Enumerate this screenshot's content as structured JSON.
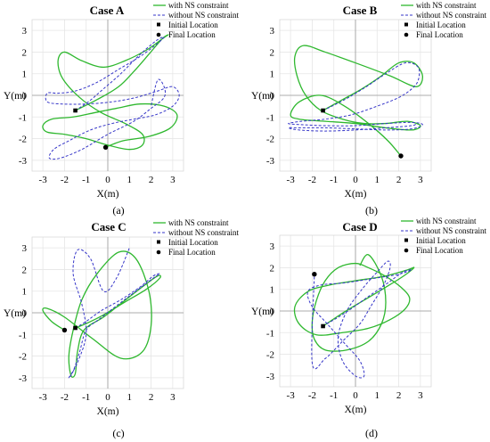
{
  "legend_labels": {
    "with": "with NS constraint",
    "without": "without NS constraint",
    "initial": "Initial Location",
    "final": "Final Location"
  },
  "colors": {
    "with": "#2fb82f",
    "without": "#3535c8",
    "marker": "#000000"
  },
  "chart_data": [
    {
      "type": "line",
      "title": "Case A",
      "caption": "(a)",
      "xlabel": "X(m)",
      "ylabel": "Y(m)",
      "xlim": [
        -3.5,
        3.5
      ],
      "ylim": [
        -3.5,
        3.5
      ],
      "xticks": [
        -3,
        -2,
        -1,
        0,
        1,
        2,
        3
      ],
      "yticks": [
        -3,
        -2,
        -1,
        0,
        1,
        2,
        3
      ],
      "legend": "top-right",
      "initial_location": [
        -1.5,
        -0.7
      ],
      "final_location": [
        -0.1,
        -2.4
      ],
      "series": [
        {
          "name": "with NS constraint",
          "style": "solid",
          "x": [
            -1.5,
            -0.5,
            0.5,
            1.2,
            1.9,
            2.5,
            2.8,
            2.5,
            1.8,
            0.8,
            -0.2,
            -1.2,
            -2.0,
            -2.3,
            -2.1,
            -1.3,
            -0.3,
            0.8,
            1.6,
            1.6,
            1.0,
            0.0,
            -1.0,
            -2.0,
            -2.8,
            -3.0,
            -2.6,
            -1.6,
            -0.6,
            0.4,
            1.5,
            2.6,
            3.2,
            2.9,
            1.9,
            0.7,
            -0.1
          ],
          "y": [
            -0.7,
            -0.2,
            0.4,
            1.1,
            1.9,
            2.6,
            2.8,
            2.6,
            2.1,
            1.6,
            1.3,
            1.6,
            2.0,
            1.6,
            0.8,
            -0.1,
            -0.8,
            -1.3,
            -1.8,
            -2.3,
            -2.5,
            -2.3,
            -2.0,
            -1.8,
            -1.7,
            -1.4,
            -1.1,
            -1.0,
            -0.8,
            -0.6,
            -0.4,
            -0.5,
            -0.9,
            -1.5,
            -1.9,
            -2.1,
            -2.4
          ]
        },
        {
          "name": "without NS constraint",
          "style": "dash",
          "x": [
            -1.5,
            -0.9,
            -0.2,
            0.6,
            1.4,
            2.2,
            2.6,
            2.3,
            1.5,
            0.5,
            -0.5,
            -1.5,
            -2.3,
            -2.8,
            -2.8,
            -2.1,
            -1.0,
            0.2,
            1.3,
            2.3,
            3.0,
            3.3,
            3.0,
            2.2,
            1.2,
            0.2,
            -0.8,
            -1.8,
            -2.5,
            -2.7,
            -2.2,
            -1.2,
            0.0,
            1.2,
            2.0,
            2.6,
            2.6,
            2.3,
            2.0
          ],
          "y": [
            -0.7,
            -0.3,
            0.3,
            1.0,
            1.8,
            2.5,
            2.7,
            2.4,
            1.8,
            1.2,
            0.6,
            0.2,
            0.1,
            0.1,
            -0.3,
            -0.4,
            -0.4,
            -0.3,
            -0.1,
            0.2,
            0.4,
            0.0,
            -0.5,
            -0.9,
            -1.1,
            -1.3,
            -1.6,
            -2.1,
            -2.5,
            -2.9,
            -2.9,
            -2.5,
            -1.8,
            -1.2,
            -0.6,
            -0.1,
            0.4,
            0.7,
            -0.5
          ]
        }
      ]
    },
    {
      "type": "line",
      "title": "Case B",
      "caption": "(b)",
      "xlabel": "X(m)",
      "ylabel": "Y(m)",
      "xlim": [
        -3.5,
        3.5
      ],
      "ylim": [
        -3.5,
        3.5
      ],
      "xticks": [
        -3,
        -2,
        -1,
        0,
        1,
        2,
        3
      ],
      "yticks": [
        -3,
        -2,
        -1,
        0,
        1,
        2,
        3
      ],
      "legend": "top-right",
      "initial_location": [
        -1.5,
        -0.7
      ],
      "final_location": [
        2.1,
        -2.8
      ],
      "series": [
        {
          "name": "with NS constraint",
          "style": "solid",
          "x": [
            -1.5,
            -0.6,
            0.3,
            1.2,
            2.0,
            2.7,
            3.1,
            2.8,
            1.6,
            0.0,
            -1.4,
            -2.4,
            -2.8,
            -2.7,
            -2.3,
            -1.6,
            -0.6,
            0.4,
            1.4,
            2.4,
            3.0,
            2.6,
            1.4,
            0.0,
            -1.4,
            -2.6,
            -3.0,
            -2.6,
            -1.6,
            -0.5,
            0.6,
            1.5,
            2.1
          ],
          "y": [
            -0.7,
            -0.2,
            0.3,
            0.9,
            1.5,
            1.5,
            0.9,
            0.4,
            0.9,
            1.5,
            2.0,
            2.3,
            1.8,
            0.9,
            0.0,
            -0.7,
            -1.1,
            -1.3,
            -1.3,
            -1.2,
            -1.4,
            -1.6,
            -1.5,
            -1.3,
            -1.2,
            -1.1,
            -0.9,
            -0.3,
            0.0,
            -0.5,
            -1.3,
            -2.1,
            -2.8
          ]
        },
        {
          "name": "without NS constraint",
          "style": "dash",
          "x": [
            -1.5,
            -0.5,
            0.5,
            1.4,
            2.3,
            2.9,
            2.9,
            2.6,
            2.0,
            1.0,
            -0.2,
            -1.4,
            -2.5,
            -3.1,
            -2.6,
            -1.4,
            0.0,
            1.4,
            2.6,
            3.1,
            2.6,
            1.4,
            0.0,
            -1.4,
            -2.6,
            -3.1,
            -2.6,
            -1.4,
            0.0,
            1.4,
            2.6,
            2.8
          ],
          "y": [
            -0.7,
            -0.2,
            0.4,
            1.0,
            1.5,
            1.3,
            0.7,
            0.3,
            -0.1,
            -0.5,
            -0.9,
            -1.1,
            -1.2,
            -1.3,
            -1.35,
            -1.4,
            -1.4,
            -1.3,
            -1.25,
            -1.35,
            -1.55,
            -1.6,
            -1.55,
            -1.5,
            -1.5,
            -1.5,
            -1.6,
            -1.65,
            -1.6,
            -1.5,
            -1.4,
            -1.3
          ]
        }
      ]
    },
    {
      "type": "line",
      "title": "Case C",
      "caption": "(c)",
      "xlabel": "X(m)",
      "ylabel": "Y(m)",
      "xlim": [
        -3.5,
        3.5
      ],
      "ylim": [
        -3.5,
        3.5
      ],
      "xticks": [
        -3,
        -2,
        -1,
        0,
        1,
        2,
        3
      ],
      "yticks": [
        -3,
        -2,
        -1,
        0,
        1,
        2,
        3
      ],
      "legend": "top-right",
      "initial_location": [
        -1.5,
        -0.7
      ],
      "final_location": [
        -2.0,
        -0.8
      ],
      "series": [
        {
          "name": "with NS constraint",
          "style": "solid",
          "x": [
            -1.5,
            -1.0,
            -0.2,
            0.8,
            1.8,
            2.4,
            2.3,
            1.6,
            0.7,
            -0.2,
            -1.1,
            -1.4,
            -1.5,
            -1.7,
            -1.8,
            -1.6,
            -1.2,
            -0.5,
            0.5,
            1.3,
            1.9,
            2.0,
            1.6,
            0.6,
            -0.7,
            -2.0,
            -2.8,
            -3.0,
            -2.6,
            -2.0
          ],
          "y": [
            -0.7,
            -0.5,
            -0.1,
            0.5,
            1.1,
            1.6,
            1.7,
            1.2,
            0.5,
            -0.2,
            -0.8,
            -1.8,
            -2.8,
            -2.9,
            -2.0,
            -0.8,
            0.6,
            1.8,
            2.8,
            2.5,
            1.0,
            -0.6,
            -1.8,
            -2.1,
            -1.2,
            -0.2,
            0.2,
            0.1,
            -0.4,
            -0.8
          ]
        },
        {
          "name": "without NS constraint",
          "style": "dash",
          "x": [
            -1.5,
            -1.0,
            -0.3,
            0.6,
            1.5,
            2.1,
            2.4,
            2.1,
            1.3,
            0.5,
            -0.4,
            -1.0,
            -1.3,
            -1.6,
            -1.8,
            -1.4,
            -1.0,
            -1.2,
            -1.6,
            -1.4,
            -0.8,
            -0.2,
            0.4,
            1.0
          ],
          "y": [
            -0.7,
            -0.4,
            0.1,
            0.6,
            1.2,
            1.7,
            1.8,
            1.6,
            1.0,
            0.4,
            -0.3,
            -0.8,
            -1.8,
            -2.7,
            -3.0,
            -2.3,
            -1.0,
            0.4,
            1.8,
            2.9,
            2.5,
            1.0,
            1.6,
            3.0
          ]
        }
      ]
    },
    {
      "type": "line",
      "title": "Case D",
      "caption": "(d)",
      "xlabel": "X(m)",
      "ylabel": "Y(m)",
      "xlim": [
        -3.5,
        3.5
      ],
      "ylim": [
        -3.5,
        3.5
      ],
      "xticks": [
        -3,
        -2,
        -1,
        0,
        1,
        2,
        3
      ],
      "yticks": [
        -3,
        -2,
        -1,
        0,
        1,
        2,
        3
      ],
      "legend": "top-right",
      "initial_location": [
        -1.5,
        -0.7
      ],
      "final_location": [
        -1.9,
        1.7
      ],
      "series": [
        {
          "name": "with NS constraint",
          "style": "solid",
          "x": [
            -1.5,
            -0.6,
            0.4,
            1.4,
            2.2,
            2.7,
            2.4,
            1.3,
            0.0,
            -1.2,
            -2.2,
            -2.8,
            -2.6,
            -1.8,
            -0.6,
            0.6,
            1.6,
            2.3,
            2.5,
            2.1,
            1.4,
            0.6,
            0.0,
            -0.8,
            -1.4,
            -1.8,
            -2.0,
            -1.9,
            -1.4,
            -0.4,
            0.6,
            1.2,
            1.4,
            1.2,
            0.6,
            0.2
          ],
          "y": [
            -0.7,
            -0.1,
            0.5,
            1.1,
            1.6,
            2.0,
            1.9,
            1.6,
            1.4,
            1.2,
            0.9,
            0.2,
            -0.6,
            -1.1,
            -1.0,
            -0.8,
            -0.4,
            0.1,
            0.6,
            1.1,
            1.6,
            2.0,
            2.2,
            2.0,
            1.4,
            0.5,
            -0.5,
            -1.3,
            -1.8,
            -1.8,
            -1.4,
            -0.6,
            0.4,
            1.6,
            2.6,
            2.1
          ]
        },
        {
          "name": "without NS constraint",
          "style": "dash",
          "x": [
            -1.5,
            -0.5,
            0.5,
            1.5,
            2.2,
            2.6,
            2.0,
            0.8,
            -0.5,
            -1.6,
            -2.2,
            -2.0,
            -1.3,
            -0.5,
            0.2,
            0.4,
            0.0,
            -0.6,
            -0.8,
            -0.4,
            0.3,
            1.0,
            1.5,
            1.6,
            1.3,
            0.7,
            0.2,
            -0.6,
            -1.4,
            -2.0,
            -1.9
          ],
          "y": [
            -0.7,
            -0.1,
            0.6,
            1.3,
            1.8,
            1.9,
            1.7,
            1.5,
            1.3,
            1.2,
            0.9,
            0.2,
            -0.6,
            -1.5,
            -2.3,
            -3.0,
            -3.0,
            -2.3,
            -1.2,
            0.0,
            1.0,
            1.8,
            2.3,
            2.0,
            1.2,
            0.2,
            -0.6,
            -1.4,
            -2.2,
            -2.4,
            1.7
          ]
        }
      ]
    }
  ]
}
